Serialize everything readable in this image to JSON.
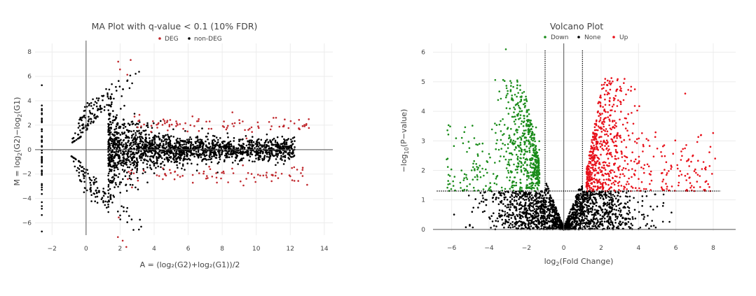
{
  "chart_data": [
    {
      "type": "scatter",
      "title": "MA Plot with q-value < 0.1 (10% FDR)",
      "xlabel": "A = (log₂(G2)+log₂(G1))/2",
      "ylabel_parts": [
        "M = log",
        "2",
        "(G2)−log",
        "2",
        "(G1)"
      ],
      "xlim": [
        -3,
        14.5
      ],
      "ylim": [
        -7,
        8.7
      ],
      "xticks": [
        -2,
        0,
        2,
        4,
        6,
        8,
        10,
        12,
        14
      ],
      "yticks": [
        -6,
        -4,
        -2,
        0,
        2,
        4,
        6,
        8
      ],
      "grid": true,
      "legend_position": "top",
      "series": [
        {
          "name": "DEG",
          "color": "#c0282d",
          "band_center": 2.1,
          "n": 170
        },
        {
          "name": "non-DEG",
          "color": "#000000",
          "n": 2200
        }
      ],
      "lines": {
        "vertical_x": 0,
        "horizontal_y": 0
      }
    },
    {
      "type": "scatter",
      "title": "Volcano Plot",
      "xlabel_parts": [
        "log",
        "2",
        "(Fold Change)"
      ],
      "ylabel_parts": [
        "−log",
        "10",
        "(P−value)"
      ],
      "xlim": [
        -7,
        9.2
      ],
      "ylim": [
        -0.05,
        6.3
      ],
      "xticks": [
        -6,
        -4,
        -2,
        0,
        2,
        4,
        6,
        8
      ],
      "yticks": [
        0,
        1,
        2,
        3,
        4,
        5,
        6
      ],
      "grid": true,
      "legend_position": "top",
      "series": [
        {
          "name": "Down",
          "color": "#1a8c1a",
          "n": 650
        },
        {
          "name": "None",
          "color": "#000000",
          "n": 1700
        },
        {
          "name": "Up",
          "color": "#e8101a",
          "n": 700
        }
      ],
      "thresholds": {
        "fold_change": [
          -1,
          1
        ],
        "neg_log10_p": 1.3
      }
    }
  ]
}
